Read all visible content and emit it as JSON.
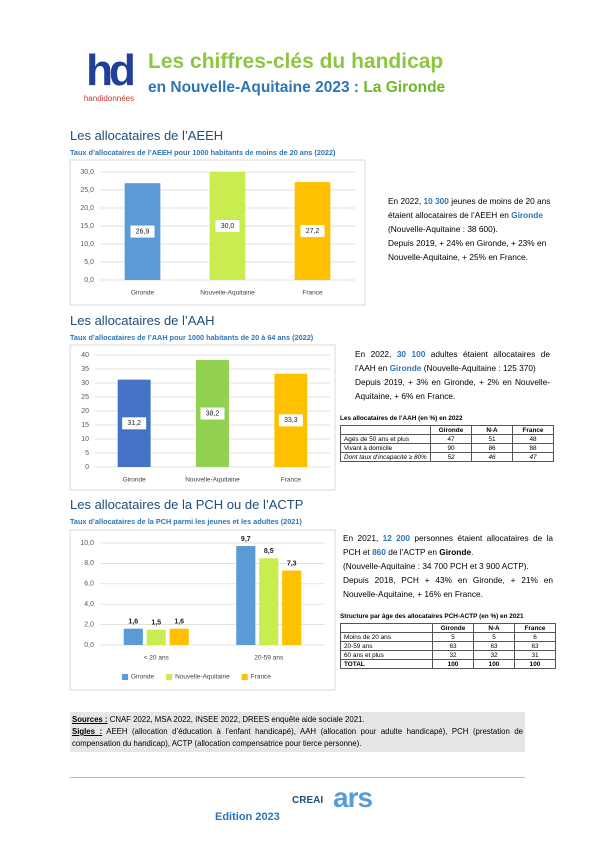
{
  "header": {
    "logo_text": "hd",
    "logo_caption": "handidonnées",
    "title": "Les chiffres-clés du handicap",
    "subtitle": "en Nouvelle-Aquitaine 2023 : ",
    "subtitle_place": "La Gironde"
  },
  "sections": [
    {
      "heading": "Les allocataires de l’AEEH",
      "text": [
        [
          "En 2022, ",
          "10 300",
          " jeunes de moins de 20 ans étaient allocataires de l’AEEH en ",
          "Gironde",
          " (Nouvelle-Aquitaine : 38 600)."
        ],
        [
          "Depuis 2019, + 24% en Gironde, + 23% en Nouvelle-Aquitaine, + 25% en France."
        ]
      ]
    },
    {
      "heading": "Les allocataires de l’AAH",
      "text": [
        [
          "En 2022, ",
          "30 100",
          " adultes étaient allocataires de l’AAH en ",
          "Gironde",
          " (Nouvelle-Aquitaine : 125 370)"
        ],
        [
          "Depuis 2019, + 3% en Gironde, + 2% en Nouvelle-Aquitaine, + 6% en France."
        ]
      ]
    },
    {
      "heading": "Les allocataires de la PCH ou de l’ACTP",
      "text": [
        [
          "En 2021, ",
          "12 200",
          " personnes étaient allocataires de la PCH et ",
          "860",
          " de l’ACTP en ",
          "Gironde",
          "."
        ],
        [
          "(Nouvelle-Aquitaine : 34 700 PCH et 3 900 ACTP)."
        ],
        [
          "Depuis 2018, PCH + 43% en Gironde, + 21% en Nouvelle-Aquitaine, + 16% en France."
        ]
      ]
    }
  ],
  "chart_data": [
    {
      "type": "bar",
      "title": "Taux d’allocataires de l’AEEH pour 1000 habitants de moins de 20 ans (2022)",
      "categories": [
        "Gironde",
        "Nouvelle-Aquitaine",
        "France"
      ],
      "values": [
        26.9,
        30.0,
        27.2
      ],
      "value_labels": [
        "26,9",
        "30,0",
        "27,2"
      ],
      "colors": [
        "#5b9bd5",
        "#c9ec4e",
        "#ffc000"
      ],
      "ylim": [
        0,
        30
      ],
      "yticks": [
        {
          "value": 0,
          "label": "0,0"
        },
        {
          "value": 5,
          "label": "5,0"
        },
        {
          "value": 10,
          "label": "10,0"
        },
        {
          "value": 15,
          "label": "15,0"
        },
        {
          "value": 20,
          "label": "20,0"
        },
        {
          "value": 25,
          "label": "25,0"
        },
        {
          "value": 30,
          "label": "30,0"
        }
      ],
      "grid": true
    },
    {
      "type": "bar",
      "title": "Taux d’allocataires de l’AAH pour 1000 habitants de 20 à 64 ans (2022)",
      "categories": [
        "Gironde",
        "Nouvelle-Aquitaine",
        "France"
      ],
      "values": [
        31.2,
        38.2,
        33.3
      ],
      "value_labels": [
        "31,2",
        "38,2",
        "33,3"
      ],
      "colors": [
        "#4472c4",
        "#92d050",
        "#ffc000"
      ],
      "ylim": [
        0,
        40
      ],
      "yticks": [
        0,
        5,
        10,
        15,
        20,
        25,
        30,
        35,
        40
      ],
      "grid": true
    },
    {
      "type": "bar",
      "title": "Taux d’allocataires de la PCH parmi les jeunes et les adultes (2021)",
      "categories": [
        "< 20 ans",
        "20-59 ans"
      ],
      "series": [
        {
          "name": "Gironde",
          "color": "#5b9bd5",
          "values": [
            1.6,
            9.7
          ],
          "value_labels": [
            "1,6",
            "9,7"
          ]
        },
        {
          "name": "Nouvelle-Aquitaine",
          "color": "#c9ec4e",
          "values": [
            1.5,
            8.5
          ],
          "value_labels": [
            "1,5",
            "8,5"
          ]
        },
        {
          "name": "France",
          "color": "#ffc000",
          "values": [
            1.6,
            7.3
          ],
          "value_labels": [
            "1,6",
            "7,3"
          ]
        }
      ],
      "ylim": [
        0,
        10
      ],
      "yticks": [
        {
          "value": 0,
          "label": "0,0"
        },
        {
          "value": 2,
          "label": "2,0"
        },
        {
          "value": 4,
          "label": "4,0"
        },
        {
          "value": 6,
          "label": "6,0"
        },
        {
          "value": 8,
          "label": "8,0"
        },
        {
          "value": 10,
          "label": "10,0"
        }
      ],
      "grid": true,
      "legend": "bottom"
    }
  ],
  "tables": [
    {
      "title": "Les allocataires de l’AAH (en %) en 2022",
      "columns": [
        "Gironde",
        "N-A",
        "France"
      ],
      "rows": [
        [
          "Agés de 50 ans et plus",
          47,
          51,
          48
        ],
        [
          "Vivant à domicile",
          90,
          86,
          88
        ],
        [
          "Dont taux d’incapacité ≥ 80%",
          52,
          46,
          47
        ]
      ]
    },
    {
      "title": "Structure par âge des allocataires PCH-ACTP (en %) en 2021",
      "columns": [
        "Gironde",
        "N-A",
        "France"
      ],
      "rows": [
        [
          "Moins de 20 ans",
          5,
          5,
          6
        ],
        [
          "20-59 ans",
          63,
          63,
          63
        ],
        [
          "60 ans et plus",
          32,
          32,
          31
        ],
        [
          "TOTAL",
          100,
          100,
          100
        ]
      ]
    }
  ],
  "footer": {
    "sources_label": "Sources :",
    "sources": " CNAF 2022, MSA 2022, INSEE 2022, DREES enquête aide sociale 2021.",
    "sigles_label": "Sigles :",
    "sigles": " AEEH (allocation d’éducation à l’enfant handicapé), AAH (allocation pour adulte handicapé), PCH (prestation de compensation du handicap), ACTP (allocation compensatrice pour tierce personne).",
    "edition": "Edition 2023",
    "logo1": "CREAI",
    "logo2": "ars"
  }
}
